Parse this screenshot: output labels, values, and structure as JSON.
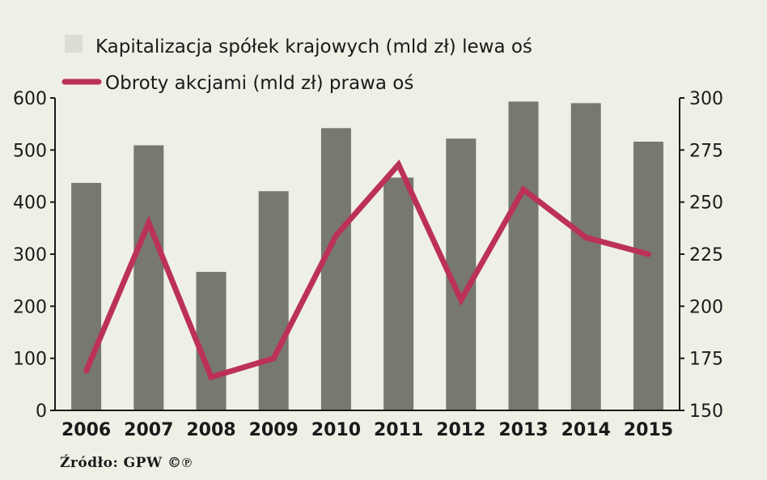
{
  "chart_data": {
    "type": "bar",
    "categories": [
      "2006",
      "2007",
      "2008",
      "2009",
      "2010",
      "2011",
      "2012",
      "2013",
      "2014",
      "2015"
    ],
    "series": [
      {
        "name": "Kapitalizacja spółek krajowych (mld zł) lewa oś",
        "type": "bar",
        "axis": "left",
        "color": "#77786f",
        "values": [
          437,
          509,
          266,
          421,
          542,
          447,
          522,
          593,
          590,
          516
        ]
      },
      {
        "name": "Obroty akcjami (mld zł) prawa oś",
        "type": "line",
        "axis": "right",
        "color": "#bc3158",
        "values": [
          169,
          240,
          166,
          175,
          234,
          268,
          203,
          256,
          233,
          225
        ]
      }
    ],
    "y_left": {
      "min": 0,
      "max": 600,
      "ticks": [
        "0",
        "100",
        "200",
        "300",
        "400",
        "500",
        "600"
      ]
    },
    "y_right": {
      "min": 150,
      "max": 300,
      "ticks": [
        "150",
        "175",
        "200",
        "225",
        "250",
        "275",
        "300"
      ]
    },
    "grid": false,
    "legend_position": "top-left",
    "legend_swatch_color": "#dcddd5"
  },
  "source": "Źródło: GPW ©℗"
}
